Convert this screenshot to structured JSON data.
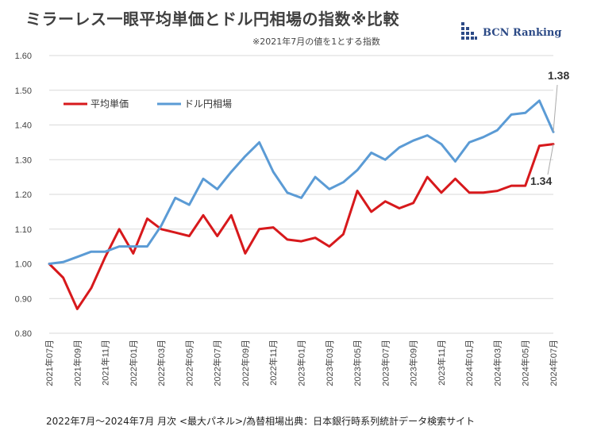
{
  "header": {
    "title": "ミラーレス一眼平均単価とドル円相場の指数※比較",
    "subtitle": "※2021年7月の値を1とする指数",
    "brand": "BCN Ranking"
  },
  "footer": {
    "source": "2022年7月〜2024年7月 月次 <最大パネル>/為替相場出典：日本銀行時系列統計データ検索サイト"
  },
  "colors": {
    "price": "#d7191c",
    "fx": "#5b9bd5",
    "grid": "#d9d9d9",
    "brand": "#2c4a86"
  },
  "chart_data": {
    "type": "line",
    "title": "ミラーレス一眼平均単価とドル円相場の指数※比較",
    "subtitle": "※2021年7月の値を1とする指数",
    "ylim": [
      0.8,
      1.6
    ],
    "y_ticks": [
      "0.80",
      "0.90",
      "1.00",
      "1.10",
      "1.20",
      "1.30",
      "1.40",
      "1.50",
      "1.60"
    ],
    "grid": "horizontal",
    "legend_position": "top-left",
    "x": [
      "2021年07月",
      "2021年08月",
      "2021年09月",
      "2021年10月",
      "2021年11月",
      "2021年12月",
      "2022年01月",
      "2022年02月",
      "2022年03月",
      "2022年04月",
      "2022年05月",
      "2022年06月",
      "2022年07月",
      "2022年08月",
      "2022年09月",
      "2022年10月",
      "2022年11月",
      "2022年12月",
      "2023年01月",
      "2023年02月",
      "2023年03月",
      "2023年04月",
      "2023年05月",
      "2023年06月",
      "2023年07月",
      "2023年08月",
      "2023年09月",
      "2023年10月",
      "2023年11月",
      "2023年12月",
      "2024年01月",
      "2024年02月",
      "2024年03月",
      "2024年04月",
      "2024年05月",
      "2024年06月",
      "2024年07月"
    ],
    "x_tick_labels": [
      "2021年07月",
      "2021年09月",
      "2021年11月",
      "2022年01月",
      "2022年03月",
      "2022年05月",
      "2022年07月",
      "2022年09月",
      "2022年11月",
      "2023年01月",
      "2023年03月",
      "2023年05月",
      "2023年07月",
      "2023年09月",
      "2023年11月",
      "2024年01月",
      "2024年03月",
      "2024年05月",
      "2024年07月"
    ],
    "series": [
      {
        "name": "平均単価",
        "color": "#d7191c",
        "values": [
          1.0,
          0.96,
          0.87,
          0.93,
          1.02,
          1.1,
          1.03,
          1.13,
          1.1,
          1.09,
          1.08,
          1.14,
          1.08,
          1.14,
          1.03,
          1.1,
          1.105,
          1.07,
          1.065,
          1.075,
          1.05,
          1.085,
          1.21,
          1.15,
          1.18,
          1.16,
          1.175,
          1.25,
          1.205,
          1.245,
          1.205,
          1.205,
          1.21,
          1.225,
          1.225,
          1.34,
          1.345
        ]
      },
      {
        "name": "ドル円相場",
        "color": "#5b9bd5",
        "values": [
          1.0,
          1.005,
          1.02,
          1.035,
          1.035,
          1.05,
          1.05,
          1.05,
          1.11,
          1.19,
          1.17,
          1.245,
          1.215,
          1.265,
          1.31,
          1.35,
          1.265,
          1.205,
          1.19,
          1.25,
          1.215,
          1.235,
          1.27,
          1.32,
          1.3,
          1.335,
          1.355,
          1.37,
          1.345,
          1.295,
          1.35,
          1.365,
          1.385,
          1.43,
          1.435,
          1.47,
          1.38
        ]
      }
    ],
    "annotations": [
      {
        "series": "ドル円相場",
        "text": "1.38"
      },
      {
        "series": "平均単価",
        "text": "1.34"
      }
    ]
  }
}
